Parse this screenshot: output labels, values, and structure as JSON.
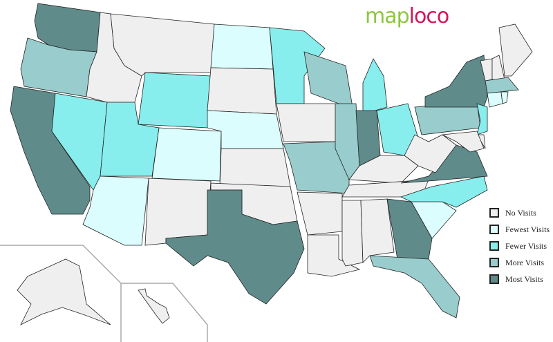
{
  "logo": {
    "part1": "map",
    "part2": "loco"
  },
  "colors": {
    "none": "#efefef",
    "fewest": "#dcfdfd",
    "fewer": "#88eded",
    "more": "#99cccc",
    "most": "#5f8b8b",
    "border": "#222222"
  },
  "legend": [
    {
      "key": "none",
      "label": "No Visits"
    },
    {
      "key": "fewest",
      "label": "Fewest Visits"
    },
    {
      "key": "fewer",
      "label": "Fewer Visits"
    },
    {
      "key": "more",
      "label": "More Visits"
    },
    {
      "key": "most",
      "label": "Most Visits"
    }
  ],
  "states": {
    "WA": "most",
    "OR": "more",
    "CA": "most",
    "NV": "fewer",
    "ID": "none",
    "MT": "none",
    "WY": "fewer",
    "UT": "fewer",
    "AZ": "fewest",
    "CO": "fewest",
    "NM": "none",
    "ND": "fewest",
    "SD": "none",
    "NE": "fewest",
    "KS": "none",
    "OK": "none",
    "TX": "most",
    "MN": "fewer",
    "IA": "none",
    "MO": "more",
    "AR": "none",
    "LA": "none",
    "WI": "more",
    "IL": "more",
    "MI": "fewer",
    "IN": "most",
    "OH": "fewer",
    "KY": "none",
    "TN": "none",
    "MS": "none",
    "AL": "none",
    "GA": "most",
    "FL": "more",
    "SC": "fewest",
    "NC": "fewer",
    "VA": "most",
    "WV": "none",
    "PA": "more",
    "NY": "most",
    "VT": "none",
    "NH": "none",
    "ME": "none",
    "MA": "more",
    "CT": "fewest",
    "RI": "fewest",
    "NJ": "fewer",
    "DE": "none",
    "MD": "none",
    "AK": "none",
    "HI": "none"
  }
}
